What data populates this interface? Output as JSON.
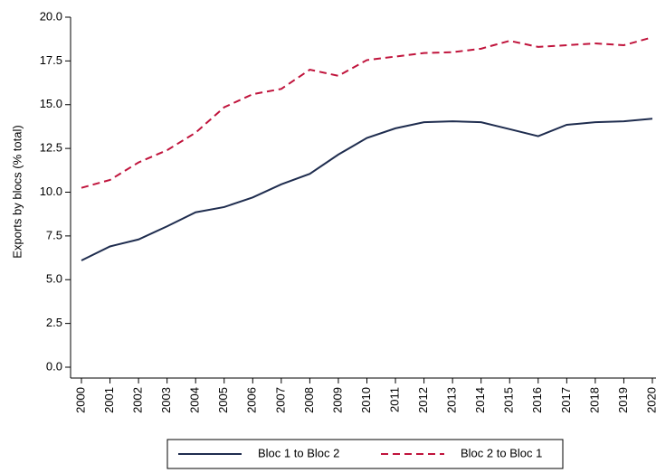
{
  "chart_data": {
    "type": "line",
    "y_label": "Exports by blocs (% total)",
    "x": [
      2000,
      2001,
      2002,
      2003,
      2004,
      2005,
      2006,
      2007,
      2008,
      2009,
      2010,
      2011,
      2012,
      2013,
      2014,
      2015,
      2016,
      2017,
      2018,
      2019,
      2020
    ],
    "series": [
      {
        "name": "Bloc 1 to Bloc 2",
        "color": "#1f2d4f",
        "line_style": "solid",
        "values": [
          6.1,
          6.9,
          7.3,
          8.05,
          8.85,
          9.15,
          9.7,
          10.45,
          11.05,
          12.15,
          13.1,
          13.65,
          14.0,
          14.05,
          14.0,
          13.6,
          13.2,
          13.85,
          14.0,
          14.05,
          14.2
        ]
      },
      {
        "name": "Bloc 2 to Bloc 1",
        "color": "#c0143c",
        "line_style": "dashed",
        "values": [
          10.25,
          10.7,
          11.7,
          12.4,
          13.4,
          14.85,
          15.6,
          15.9,
          17.0,
          16.65,
          17.55,
          17.75,
          17.95,
          18.0,
          18.2,
          18.65,
          18.3,
          18.4,
          18.5,
          18.4,
          18.85
        ]
      }
    ],
    "xlim": [
      2000,
      2020
    ],
    "xticks": [
      2000,
      2001,
      2002,
      2003,
      2004,
      2005,
      2006,
      2007,
      2008,
      2009,
      2010,
      2011,
      2012,
      2013,
      2014,
      2015,
      2016,
      2017,
      2018,
      2019,
      2020
    ],
    "ylim": [
      0,
      20
    ],
    "yticks": [
      {
        "value": 0,
        "label": "0.0"
      },
      {
        "value": 2.5,
        "label": "2.5"
      },
      {
        "value": 5,
        "label": "5.0"
      },
      {
        "value": 7.5,
        "label": "7.5"
      },
      {
        "value": 10,
        "label": "10.0"
      },
      {
        "value": 12.5,
        "label": "12.5"
      },
      {
        "value": 15,
        "label": "15.0"
      },
      {
        "value": 17.5,
        "label": "17.5"
      },
      {
        "value": 20,
        "label": "20.0"
      }
    ],
    "legend": "bottom"
  }
}
